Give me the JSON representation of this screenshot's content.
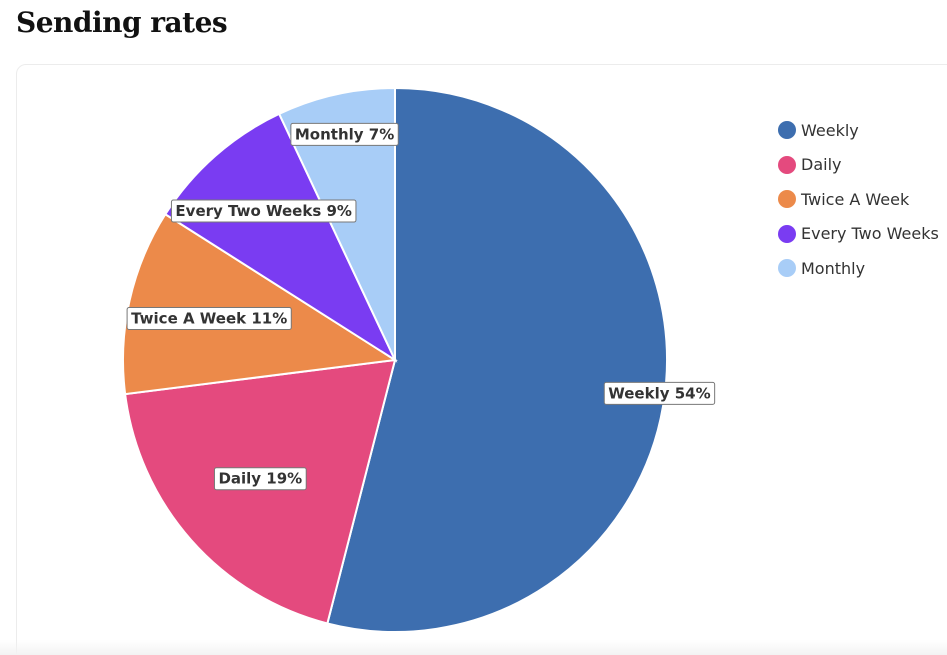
{
  "page": {
    "heading": "Sending rates"
  },
  "chart_data": {
    "type": "pie",
    "categories": [
      "Weekly",
      "Daily",
      "Twice A Week",
      "Every Two Weeks",
      "Monthly"
    ],
    "values": [
      54,
      19,
      11,
      9,
      7
    ],
    "labels": [
      "Weekly 54%",
      "Daily 19%",
      "Twice A Week 11%",
      "Every Two Weeks 9%",
      "Monthly 7%"
    ],
    "colors": [
      "#3d6eaf",
      "#e44a7e",
      "#ec8a4a",
      "#7a3cf2",
      "#a8cdf7"
    ],
    "legend_position": "right"
  }
}
